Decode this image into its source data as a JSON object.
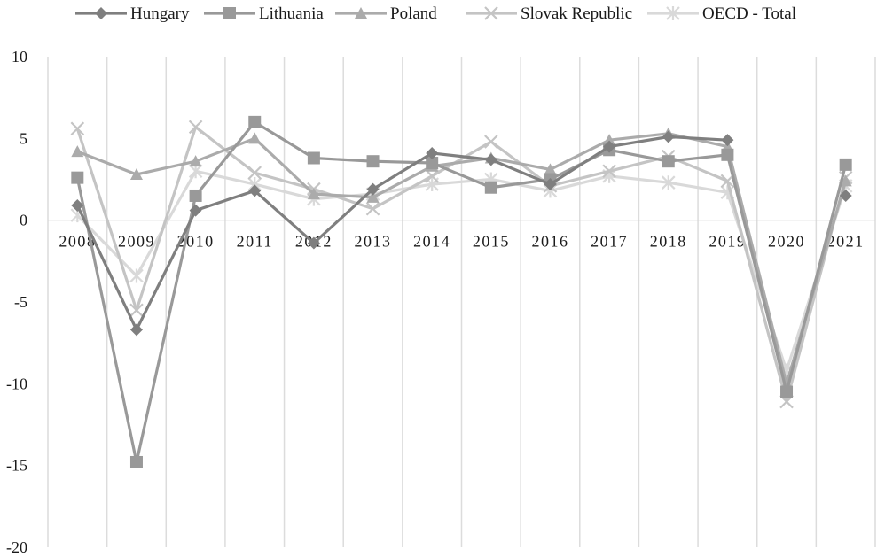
{
  "chart_data": {
    "type": "line",
    "categories": [
      "2008",
      "2009",
      "2010",
      "2011",
      "2012",
      "2013",
      "2014",
      "2015",
      "2016",
      "2017",
      "2018",
      "2019",
      "2020",
      "2021"
    ],
    "ylim": [
      -20,
      10
    ],
    "yticks": [
      10,
      5,
      0,
      -5,
      -10,
      -15,
      -20
    ],
    "grid": "vertical",
    "legend_position": "top",
    "series": [
      {
        "name": "Hungary",
        "marker": "diamond",
        "color": "#7f7f7f",
        "values": [
          0.9,
          -6.7,
          0.6,
          1.8,
          -1.4,
          1.9,
          4.1,
          3.7,
          2.2,
          4.5,
          5.1,
          4.9,
          null,
          1.5
        ]
      },
      {
        "name": "Lithuania",
        "marker": "square",
        "color": "#999999",
        "values": [
          2.6,
          -14.8,
          1.5,
          6.0,
          3.8,
          3.6,
          3.5,
          2.0,
          2.5,
          4.3,
          3.6,
          4.0,
          -10.5,
          3.4
        ]
      },
      {
        "name": "Poland",
        "marker": "triangle",
        "color": "#ababab",
        "values": [
          4.2,
          2.8,
          3.6,
          5.0,
          1.6,
          1.4,
          3.3,
          3.8,
          3.1,
          4.9,
          5.3,
          4.5,
          -10.0,
          2.4
        ]
      },
      {
        "name": "Slovak Republic",
        "marker": "x",
        "color": "#c4c4c4",
        "values": [
          5.6,
          -5.5,
          5.7,
          2.9,
          1.9,
          0.7,
          2.7,
          4.8,
          2.1,
          3.0,
          3.9,
          2.4,
          -11.1,
          2.6
        ]
      },
      {
        "name": "OECD - Total",
        "marker": "star",
        "color": "#d9d9d9",
        "values": [
          0.3,
          -3.4,
          3.0,
          2.2,
          1.3,
          1.6,
          2.2,
          2.5,
          1.8,
          2.7,
          2.3,
          1.7,
          -9.2,
          2.1
        ]
      }
    ]
  }
}
